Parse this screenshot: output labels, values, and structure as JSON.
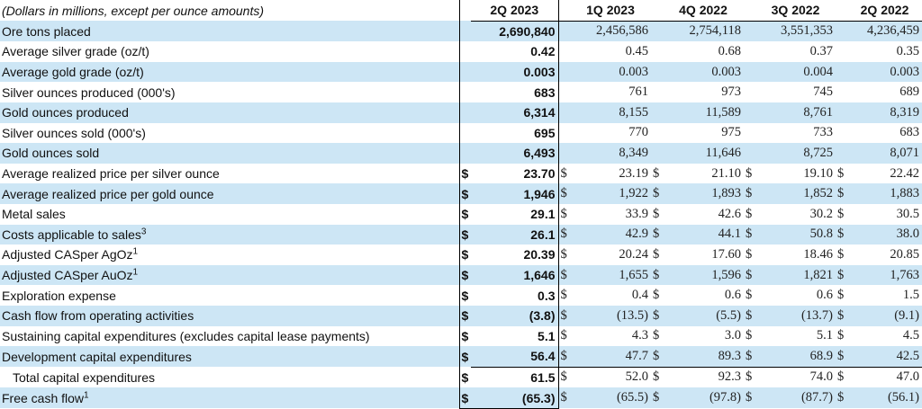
{
  "header": {
    "note": "(Dollars in millions, except per ounce amounts)",
    "periods": [
      "2Q 2023",
      "1Q 2023",
      "4Q 2022",
      "3Q 2022",
      "2Q 2022"
    ]
  },
  "rows": [
    {
      "label": "Ore tons placed",
      "dollar": false,
      "values": [
        "2,690,840",
        "2,456,586",
        "2,754,118",
        "3,551,353",
        "4,236,459"
      ]
    },
    {
      "label": "Average silver grade (oz/t)",
      "dollar": false,
      "values": [
        "0.42",
        "0.45",
        "0.68",
        "0.37",
        "0.35"
      ]
    },
    {
      "label": "Average gold grade (oz/t)",
      "dollar": false,
      "values": [
        "0.003",
        "0.003",
        "0.003",
        "0.004",
        "0.003"
      ]
    },
    {
      "label": "Silver ounces produced (000's)",
      "dollar": false,
      "values": [
        "683",
        "761",
        "973",
        "745",
        "689"
      ]
    },
    {
      "label": "Gold ounces produced",
      "dollar": false,
      "values": [
        "6,314",
        "8,155",
        "11,589",
        "8,761",
        "8,319"
      ]
    },
    {
      "label": "Silver ounces sold (000's)",
      "dollar": false,
      "values": [
        "695",
        "770",
        "975",
        "733",
        "683"
      ]
    },
    {
      "label": "Gold ounces sold",
      "dollar": false,
      "values": [
        "6,493",
        "8,349",
        "11,646",
        "8,725",
        "8,071"
      ]
    },
    {
      "label": "Average realized price per silver ounce",
      "dollar": true,
      "values": [
        "23.70",
        "23.19",
        "21.10",
        "19.10",
        "22.42"
      ]
    },
    {
      "label": "Average realized price per gold ounce",
      "dollar": true,
      "values": [
        "1,946",
        "1,922",
        "1,893",
        "1,852",
        "1,883"
      ]
    },
    {
      "label": "Metal sales",
      "dollar": true,
      "values": [
        "29.1",
        "33.9",
        "42.6",
        "30.2",
        "30.5"
      ]
    },
    {
      "label": "Costs applicable to sales",
      "sup": "3",
      "dollar": true,
      "values": [
        "26.1",
        "42.9",
        "44.1",
        "50.8",
        "38.0"
      ]
    },
    {
      "label": "Adjusted CASper AgOz",
      "sup": "1",
      "dollar": true,
      "values": [
        "20.39",
        "20.24",
        "17.60",
        "18.46",
        "20.85"
      ]
    },
    {
      "label": "Adjusted CASper AuOz",
      "sup": "1",
      "dollar": true,
      "values": [
        "1,646",
        "1,655",
        "1,596",
        "1,821",
        "1,763"
      ]
    },
    {
      "label": "Exploration expense",
      "dollar": true,
      "values": [
        "0.3",
        "0.4",
        "0.6",
        "0.6",
        "1.5"
      ]
    },
    {
      "label": "Cash flow from operating activities",
      "dollar": true,
      "values": [
        "(3.8)",
        "(13.5)",
        "(5.5)",
        "(13.7)",
        "(9.1)"
      ]
    },
    {
      "label": "Sustaining capital expenditures (excludes capital lease payments)",
      "dollar": true,
      "values": [
        "5.1",
        "4.3",
        "3.0",
        "5.1",
        "4.5"
      ]
    },
    {
      "label": "Development capital expenditures",
      "dollar": true,
      "values": [
        "56.4",
        "47.7",
        "89.3",
        "68.9",
        "42.5"
      ]
    },
    {
      "label": "Total capital expenditures",
      "indent": true,
      "total": true,
      "dollar": true,
      "values": [
        "61.5",
        "52.0",
        "92.3",
        "74.0",
        "47.0"
      ]
    },
    {
      "label": "Free cash flow",
      "sup": "1",
      "dollar": true,
      "values": [
        "(65.3)",
        "(65.5)",
        "(97.8)",
        "(87.7)",
        "(56.1)"
      ]
    }
  ],
  "dollar_sign": "$",
  "colors": {
    "row_shade": "#cde6f5",
    "text": "#111111"
  }
}
